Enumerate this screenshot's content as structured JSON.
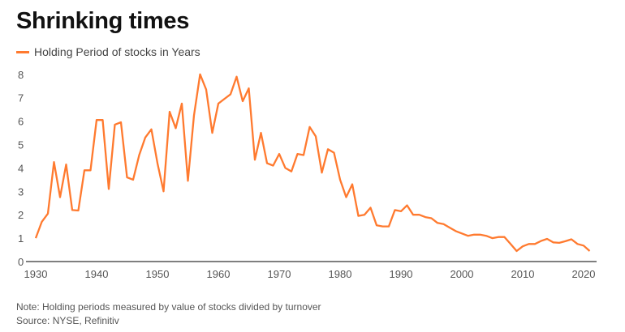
{
  "chart_data": {
    "type": "line",
    "title": "Shrinking times",
    "xlabel": "",
    "ylabel": "",
    "xlim": [
      1930,
      2021
    ],
    "ylim": [
      0,
      8
    ],
    "grid": false,
    "legend_placement": "top-left",
    "x_ticks": [
      1930,
      1940,
      1950,
      1960,
      1970,
      1980,
      1990,
      2000,
      2010,
      2020
    ],
    "y_ticks": [
      0,
      1,
      2,
      3,
      4,
      5,
      6,
      7,
      8
    ],
    "series": [
      {
        "name": "Holding Period of stocks in Years",
        "color": "#ff7a2f",
        "x": [
          1930,
          1931,
          1932,
          1933,
          1934,
          1935,
          1936,
          1937,
          1938,
          1939,
          1940,
          1941,
          1942,
          1943,
          1944,
          1945,
          1946,
          1947,
          1948,
          1949,
          1950,
          1951,
          1952,
          1953,
          1954,
          1955,
          1956,
          1957,
          1958,
          1959,
          1960,
          1961,
          1962,
          1963,
          1964,
          1965,
          1966,
          1967,
          1968,
          1969,
          1970,
          1971,
          1972,
          1973,
          1974,
          1975,
          1976,
          1977,
          1978,
          1979,
          1980,
          1981,
          1982,
          1983,
          1984,
          1985,
          1986,
          1987,
          1988,
          1989,
          1990,
          1991,
          1992,
          1993,
          1994,
          1995,
          1996,
          1997,
          1998,
          1999,
          2000,
          2001,
          2002,
          2003,
          2004,
          2005,
          2006,
          2007,
          2008,
          2009,
          2010,
          2011,
          2012,
          2013,
          2014,
          2015,
          2016,
          2017,
          2018,
          2019,
          2020,
          2021
        ],
        "values": [
          1.0,
          1.7,
          2.05,
          4.25,
          2.75,
          4.15,
          2.2,
          2.18,
          3.9,
          3.9,
          6.05,
          6.05,
          3.1,
          5.85,
          5.95,
          3.6,
          3.5,
          4.55,
          5.3,
          5.65,
          4.2,
          3.0,
          6.4,
          5.7,
          6.75,
          3.45,
          6.25,
          8.0,
          7.35,
          5.5,
          6.75,
          6.95,
          7.15,
          7.9,
          6.85,
          7.4,
          4.35,
          5.5,
          4.2,
          4.1,
          4.6,
          4.0,
          3.85,
          4.6,
          4.55,
          5.75,
          5.35,
          3.8,
          4.8,
          4.65,
          3.5,
          2.75,
          3.3,
          1.95,
          2.0,
          2.3,
          1.55,
          1.5,
          1.5,
          2.2,
          2.15,
          2.4,
          2.0,
          2.0,
          1.9,
          1.85,
          1.65,
          1.6,
          1.45,
          1.3,
          1.2,
          1.1,
          1.15,
          1.15,
          1.1,
          1.0,
          1.05,
          1.05,
          0.75,
          0.45,
          0.65,
          0.75,
          0.75,
          0.88,
          0.97,
          0.82,
          0.8,
          0.87,
          0.95,
          0.75,
          0.68,
          0.45
        ]
      }
    ],
    "notes": [
      "Note: Holding periods measured by value of stocks divided by turnover",
      "Source: NYSE, Refinitiv"
    ]
  }
}
